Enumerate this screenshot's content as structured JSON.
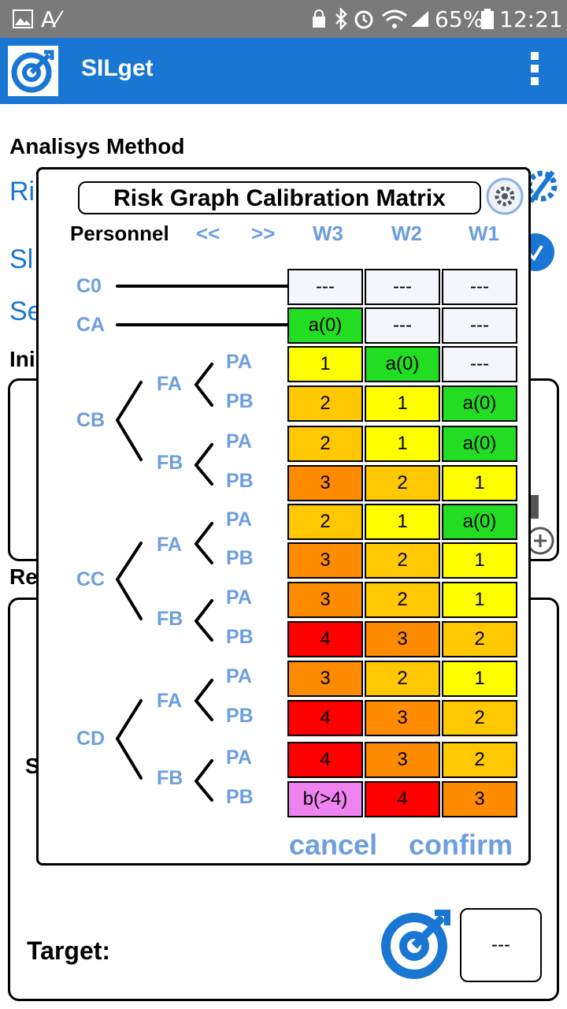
{
  "status_bar": {
    "battery": "65%",
    "time": "12:21",
    "left_icons": [
      "image-icon",
      "text-check-icon"
    ],
    "right_icons": [
      "lock-icon",
      "bluetooth-icon",
      "alarm-icon",
      "wifi-icon",
      "signal-icon",
      "battery-icon"
    ]
  },
  "app_bar": {
    "title": "SILget"
  },
  "background": {
    "section_title": "Analisys Method",
    "fragment_ri": "Ri",
    "fragment_sl": "Sl",
    "fragment_se": "Se",
    "fragment_ini": "Ini",
    "fragment_re": "Re",
    "fragment_s": "S",
    "target_label": "Target:",
    "target_value": "---"
  },
  "dialog": {
    "title": "Risk Graph Calibration Matrix",
    "category": "Personnel",
    "prev_label": "<<",
    "next_label": ">>",
    "columns": [
      "W3",
      "W2",
      "W1"
    ],
    "consequence_labels": {
      "c0": "C0",
      "ca": "CA",
      "cb": "CB",
      "cc": "CC",
      "cd": "CD"
    },
    "frequency_labels": {
      "fa": "FA",
      "fb": "FB"
    },
    "possibility_labels": {
      "pa": "PA",
      "pb": "PB"
    },
    "rows": [
      [
        "---",
        "---",
        "---"
      ],
      [
        "a(0)",
        "---",
        "---"
      ],
      [
        "1",
        "a(0)",
        "---"
      ],
      [
        "2",
        "1",
        "a(0)"
      ],
      [
        "2",
        "1",
        "a(0)"
      ],
      [
        "3",
        "2",
        "1"
      ],
      [
        "2",
        "1",
        "a(0)"
      ],
      [
        "3",
        "2",
        "1"
      ],
      [
        "3",
        "2",
        "1"
      ],
      [
        "4",
        "3",
        "2"
      ],
      [
        "3",
        "2",
        "1"
      ],
      [
        "4",
        "3",
        "2"
      ],
      [
        "4",
        "3",
        "2"
      ],
      [
        "b(>4)",
        "4",
        "3"
      ]
    ],
    "level_colors": {
      "---": "#f4f6fb",
      "a(0)": "#22dd22",
      "1": "#ffff00",
      "2": "#ffc800",
      "3": "#ff8c00",
      "4": "#ff0000",
      "b(>4)": "#ee82ee"
    },
    "cancel_label": "cancel",
    "confirm_label": "confirm"
  }
}
